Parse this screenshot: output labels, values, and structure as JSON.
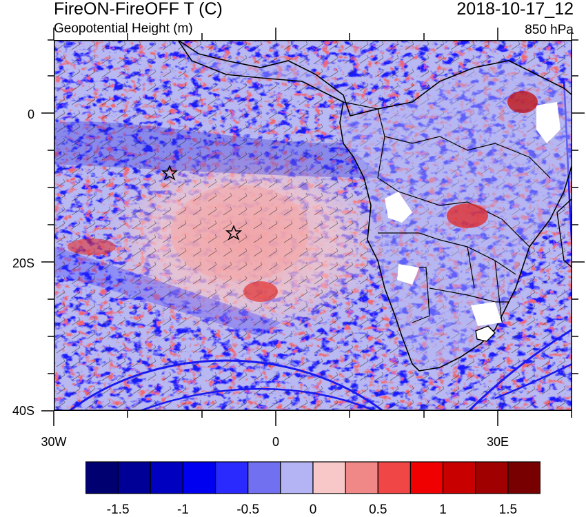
{
  "header": {
    "title_left": "FireON-FireOFF T (C)",
    "subtitle_left": "Geopotential Height (m)",
    "title_right": "2018-10-17_12",
    "subtitle_right": "850 hPa"
  },
  "axes": {
    "lat_labels": [
      "0",
      "20S",
      "40S"
    ],
    "lon_labels": [
      "30W",
      "0",
      "30E"
    ]
  },
  "colorbar": {
    "colors": [
      "#000070",
      "#000096",
      "#0000c0",
      "#0000f0",
      "#2a2aff",
      "#7070f0",
      "#b4b4f4",
      "#f8c8c8",
      "#f08888",
      "#f04646",
      "#f00000",
      "#c80000",
      "#a00000",
      "#780000"
    ],
    "labels": [
      "-1.5",
      "-1",
      "-0.5",
      "0",
      "0.5",
      "1",
      "1.5"
    ]
  },
  "map": {
    "markers": [
      "star-marker",
      "star-marker"
    ]
  }
}
